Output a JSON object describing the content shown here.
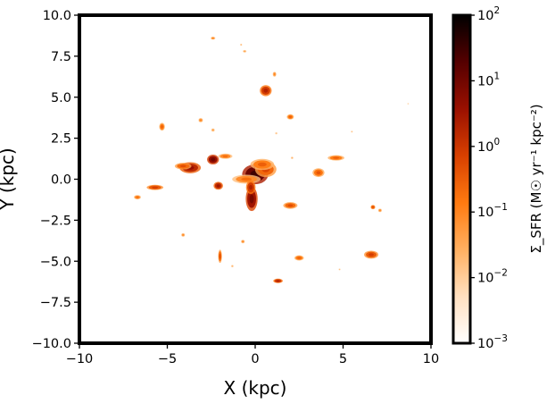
{
  "chart_data": {
    "type": "heatmap",
    "title": "",
    "xlabel": "X (kpc)",
    "ylabel": "Y (kpc)",
    "xlim": [
      -10,
      10
    ],
    "ylim": [
      -10,
      10
    ],
    "x_ticks": [
      -10,
      -5,
      0,
      5,
      10
    ],
    "x_tick_labels": [
      "−10",
      "−5",
      "0",
      "5",
      "10"
    ],
    "y_ticks": [
      10,
      7.5,
      5,
      2.5,
      0,
      -2.5,
      -5,
      -7.5,
      -10
    ],
    "y_tick_labels": [
      "10.0",
      "7.5",
      "5.0",
      "2.5",
      "0.0",
      "−2.5",
      "−5.0",
      "−7.5",
      "−10.0"
    ],
    "grid": false,
    "colormap": "gist_heat_r",
    "colorbar": {
      "label": "Σ_SFR (M☉ yr⁻¹ kpc⁻²)",
      "scale": "log",
      "range": [
        0.001,
        100
      ],
      "tick_labels": [
        {
          "base": "10",
          "exp": "2",
          "value": 100
        },
        {
          "base": "10",
          "exp": "1",
          "value": 10
        },
        {
          "base": "10",
          "exp": "0",
          "value": 1
        },
        {
          "base": "10",
          "exp": "−1",
          "value": 0.1
        },
        {
          "base": "10",
          "exp": "−2",
          "value": 0.01
        },
        {
          "base": "10",
          "exp": "−3",
          "value": 0.001
        }
      ],
      "colors": [
        "#ffffff",
        "#ffe0c0",
        "#ffb060",
        "#ff7a10",
        "#d84000",
        "#9a1000",
        "#550000",
        "#000000"
      ]
    },
    "clumps": [
      {
        "x": 0.0,
        "y": 0.3,
        "rx": 0.55,
        "ry": 0.45,
        "sfr": 30
      },
      {
        "x": 0.6,
        "y": 0.6,
        "rx": 0.45,
        "ry": 0.35,
        "sfr": 0.6
      },
      {
        "x": 0.4,
        "y": 0.9,
        "rx": 0.5,
        "ry": 0.25,
        "sfr": 0.3
      },
      {
        "x": -0.5,
        "y": 0.0,
        "rx": 0.6,
        "ry": 0.2,
        "sfr": 0.2
      },
      {
        "x": -0.2,
        "y": -1.2,
        "rx": 0.25,
        "ry": 0.55,
        "sfr": 8
      },
      {
        "x": -0.25,
        "y": -0.5,
        "rx": 0.2,
        "ry": 0.3,
        "sfr": 2
      },
      {
        "x": -2.4,
        "y": 1.2,
        "rx": 0.25,
        "ry": 0.22,
        "sfr": 10
      },
      {
        "x": -3.7,
        "y": 0.7,
        "rx": 0.45,
        "ry": 0.25,
        "sfr": 4
      },
      {
        "x": -4.1,
        "y": 0.8,
        "rx": 0.35,
        "ry": 0.15,
        "sfr": 0.5
      },
      {
        "x": -1.7,
        "y": 1.4,
        "rx": 0.3,
        "ry": 0.12,
        "sfr": 0.2
      },
      {
        "x": -2.1,
        "y": -0.4,
        "rx": 0.2,
        "ry": 0.18,
        "sfr": 3
      },
      {
        "x": -5.7,
        "y": -0.5,
        "rx": 0.35,
        "ry": 0.12,
        "sfr": 0.8
      },
      {
        "x": -6.7,
        "y": -1.1,
        "rx": 0.15,
        "ry": 0.1,
        "sfr": 0.2
      },
      {
        "x": -5.3,
        "y": 3.2,
        "rx": 0.12,
        "ry": 0.18,
        "sfr": 0.3
      },
      {
        "x": -3.1,
        "y": 3.6,
        "rx": 0.1,
        "ry": 0.1,
        "sfr": 0.1
      },
      {
        "x": -2.4,
        "y": 3.0,
        "rx": 0.08,
        "ry": 0.08,
        "sfr": 0.05
      },
      {
        "x": 0.6,
        "y": 5.4,
        "rx": 0.25,
        "ry": 0.25,
        "sfr": 2
      },
      {
        "x": 1.1,
        "y": 6.4,
        "rx": 0.08,
        "ry": 0.12,
        "sfr": 0.1
      },
      {
        "x": -2.4,
        "y": 8.6,
        "rx": 0.1,
        "ry": 0.07,
        "sfr": 0.1
      },
      {
        "x": -0.6,
        "y": 7.8,
        "rx": 0.08,
        "ry": 0.06,
        "sfr": 0.05
      },
      {
        "x": -0.8,
        "y": 8.2,
        "rx": 0.05,
        "ry": 0.05,
        "sfr": 0.03
      },
      {
        "x": 2.0,
        "y": 3.8,
        "rx": 0.15,
        "ry": 0.12,
        "sfr": 0.3
      },
      {
        "x": 1.2,
        "y": 2.8,
        "rx": 0.06,
        "ry": 0.06,
        "sfr": 0.02
      },
      {
        "x": 2.1,
        "y": 1.3,
        "rx": 0.06,
        "ry": 0.06,
        "sfr": 0.03
      },
      {
        "x": 3.6,
        "y": 0.4,
        "rx": 0.25,
        "ry": 0.2,
        "sfr": 0.4
      },
      {
        "x": 4.6,
        "y": 1.3,
        "rx": 0.35,
        "ry": 0.12,
        "sfr": 0.3
      },
      {
        "x": 5.5,
        "y": 2.9,
        "rx": 0.05,
        "ry": 0.05,
        "sfr": 0.02
      },
      {
        "x": 8.7,
        "y": 4.6,
        "rx": 0.05,
        "ry": 0.05,
        "sfr": 0.01
      },
      {
        "x": 2.0,
        "y": -1.6,
        "rx": 0.3,
        "ry": 0.15,
        "sfr": 0.5
      },
      {
        "x": 6.7,
        "y": -1.7,
        "rx": 0.1,
        "ry": 0.1,
        "sfr": 0.5
      },
      {
        "x": 7.1,
        "y": -1.9,
        "rx": 0.08,
        "ry": 0.08,
        "sfr": 0.1
      },
      {
        "x": -4.1,
        "y": -3.4,
        "rx": 0.08,
        "ry": 0.08,
        "sfr": 0.1
      },
      {
        "x": -0.7,
        "y": -3.8,
        "rx": 0.08,
        "ry": 0.08,
        "sfr": 0.1
      },
      {
        "x": -2.0,
        "y": -4.7,
        "rx": 0.08,
        "ry": 0.3,
        "sfr": 0.5
      },
      {
        "x": 2.5,
        "y": -4.8,
        "rx": 0.2,
        "ry": 0.12,
        "sfr": 0.3
      },
      {
        "x": 6.6,
        "y": -4.6,
        "rx": 0.3,
        "ry": 0.18,
        "sfr": 0.8
      },
      {
        "x": 1.3,
        "y": -6.2,
        "rx": 0.2,
        "ry": 0.1,
        "sfr": 2
      },
      {
        "x": -1.3,
        "y": -5.3,
        "rx": 0.06,
        "ry": 0.06,
        "sfr": 0.03
      },
      {
        "x": 4.8,
        "y": -5.5,
        "rx": 0.05,
        "ry": 0.05,
        "sfr": 0.02
      }
    ]
  }
}
